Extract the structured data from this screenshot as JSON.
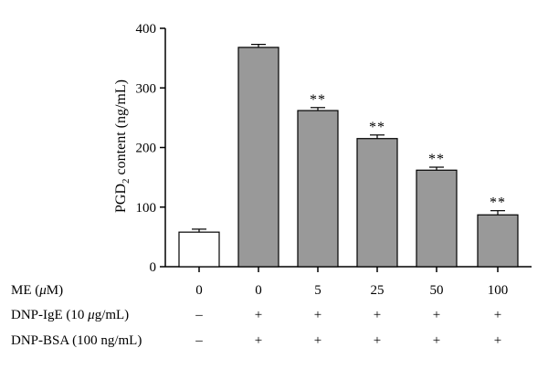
{
  "chart_data": {
    "type": "bar",
    "ylabel_main": "PGD",
    "ylabel_sub": "2",
    "ylabel_rest": " content (ng/mL)",
    "ylim": [
      0,
      400
    ],
    "yticks": [
      "0",
      "100",
      "200",
      "300",
      "400"
    ],
    "grid": false,
    "values": [
      58,
      368,
      262,
      215,
      162,
      87
    ],
    "errors": [
      5,
      5,
      5,
      6,
      5,
      7
    ],
    "fills": [
      "#ffffff",
      "#999999",
      "#999999",
      "#999999",
      "#999999",
      "#999999"
    ],
    "significance": [
      "",
      "",
      "**",
      "**",
      "**",
      "**"
    ],
    "table": {
      "rows": [
        {
          "label_parts": [
            "ME (",
            "μ",
            "M)"
          ],
          "cells": [
            "0",
            "0",
            "5",
            "25",
            "50",
            "100"
          ]
        },
        {
          "label_parts": [
            "DNP-IgE (10 ",
            "μ",
            "g/mL)"
          ],
          "cells": [
            "–",
            "+",
            "+",
            "+",
            "+",
            "+"
          ]
        },
        {
          "label_parts": [
            "DNP-BSA (100 ng/mL)"
          ],
          "cells": [
            "–",
            "+",
            "+",
            "+",
            "+",
            "+"
          ]
        }
      ]
    }
  }
}
